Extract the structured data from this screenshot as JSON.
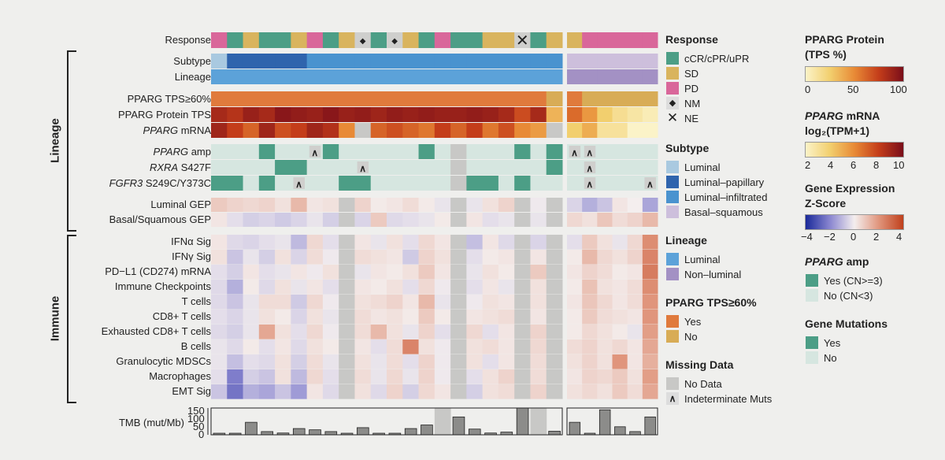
{
  "rows": [
    {
      "id": "response",
      "label": "Response",
      "italic": null
    },
    {
      "id": "subtype",
      "label": "Subtype",
      "italic": null
    },
    {
      "id": "lineage",
      "label": "Lineage",
      "italic": null
    },
    {
      "id": "tps60",
      "label": "PPARG TPS≥60%",
      "italic": null
    },
    {
      "id": "protein",
      "label": "PPARG Protein TPS",
      "italic": null
    },
    {
      "id": "mrna",
      "label": " mRNA",
      "italic": "PPARG"
    },
    {
      "id": "amp",
      "label": " amp",
      "italic": "PPARG"
    },
    {
      "id": "rxra",
      "label": " S427F",
      "italic": "RXRA"
    },
    {
      "id": "fgfr3",
      "label": " S249C/Y373C",
      "italic": "FGFR3"
    },
    {
      "id": "lumgep",
      "label": "Luminal GEP",
      "italic": null
    },
    {
      "id": "basgep",
      "label": "Basal/Squamous GEP",
      "italic": null
    },
    {
      "id": "ifna",
      "label": "IFNα Sig",
      "italic": null
    },
    {
      "id": "ifng",
      "label": "IFNγ Sig",
      "italic": null
    },
    {
      "id": "pdl1",
      "label": "PD−L1 (CD274) mRNA",
      "italic": null
    },
    {
      "id": "immcp",
      "label": "Immune Checkpoints",
      "italic": null
    },
    {
      "id": "tcells",
      "label": "T cells",
      "italic": null
    },
    {
      "id": "cd8",
      "label": "CD8+ T cells",
      "italic": null
    },
    {
      "id": "excd8",
      "label": "Exhausted CD8+ T cells",
      "italic": null
    },
    {
      "id": "bcells",
      "label": "B cells",
      "italic": null
    },
    {
      "id": "mdsc",
      "label": "Granulocytic MDSCs",
      "italic": null
    },
    {
      "id": "macro",
      "label": "Macrophages",
      "italic": null
    },
    {
      "id": "emt",
      "label": "EMT Sig",
      "italic": null
    }
  ],
  "group_labels": {
    "lineage": "Lineage",
    "immune": "Immune"
  },
  "tmb": {
    "label": "TMB (mut/Mb)",
    "ticks": [
      "150",
      "100",
      "50",
      "0"
    ]
  },
  "legends": {
    "response": {
      "title": "Response",
      "items": [
        {
          "label": "cCR/cPR/uPR",
          "color": "#4c9e86"
        },
        {
          "label": "SD",
          "color": "#d9b45e"
        },
        {
          "label": "PD",
          "color": "#d9679a"
        },
        {
          "label": "NM",
          "symbol": "◆"
        },
        {
          "label": "NE",
          "symbol": "✕"
        }
      ]
    },
    "subtype": {
      "title": "Subtype",
      "items": [
        {
          "label": "Luminal",
          "color": "#a9c9e0"
        },
        {
          "label": "Luminal–papillary",
          "color": "#2f64ad"
        },
        {
          "label": "Luminal–infiltrated",
          "color": "#4a93cf"
        },
        {
          "label": "Basal–squamous",
          "color": "#cdbfdc"
        }
      ]
    },
    "lineage": {
      "title": "Lineage",
      "items": [
        {
          "label": "Luminal",
          "color": "#5ca2d9"
        },
        {
          "label": "Non–luminal",
          "color": "#a391c4"
        }
      ]
    },
    "tps60": {
      "title": "PPARG TPS≥60%",
      "items": [
        {
          "label": "Yes",
          "color": "#e07a3c"
        },
        {
          "label": "No",
          "color": "#d8ac56"
        }
      ]
    },
    "missing": {
      "title": "Missing Data",
      "items": [
        {
          "label": "No Data",
          "color": "#c8c8c6"
        },
        {
          "label": "Indeterminate Muts",
          "symbol": "∧"
        }
      ]
    },
    "protein": {
      "title": "PPARG Protein",
      "title2": "(TPS %)",
      "ticks": [
        "0",
        "50",
        "100"
      ]
    },
    "mrna": {
      "title_italic": "PPARG",
      "title": " mRNA",
      "title2": "log₂(TPM+1)",
      "ticks": [
        "2",
        "4",
        "6",
        "8",
        "10"
      ]
    },
    "gexp": {
      "title": "Gene Expression",
      "title2": "Z-Score",
      "ticks": [
        "−4",
        "−2",
        "0",
        "2",
        "4"
      ]
    },
    "amp": {
      "title_italic": "PPARG",
      "title": " amp",
      "items": [
        {
          "label": "Yes (CN>=3)",
          "color": "#4c9e86"
        },
        {
          "label": "No (CN<3)",
          "color": "#d6e6e0"
        }
      ]
    },
    "mut": {
      "title": "Gene Mutations",
      "items": [
        {
          "label": "Yes",
          "color": "#4c9e86"
        },
        {
          "label": "No",
          "color": "#d6e6e0"
        }
      ]
    }
  },
  "colors": {
    "cool": "#3a3aa8",
    "warm": "#c0401c",
    "neutral": "#f4eeee",
    "nodata": "#c8c8c6",
    "amp_no": "#d6e6e0",
    "amp_yes": "#4c9e86"
  },
  "chart_data": {
    "type": "heatmap",
    "groups": [
      {
        "name": "Luminal",
        "n": 22
      },
      {
        "name": "Non-luminal",
        "n": 6
      }
    ],
    "response": [
      "PD",
      "cCR",
      "SD",
      "cCR",
      "cCR",
      "SD",
      "PD",
      "cCR",
      "SD",
      "NM",
      "cCR",
      "NM",
      "SD",
      "cCR",
      "PD",
      "cCR",
      "cCR",
      "SD",
      "SD",
      "NE",
      "cCR",
      "SD",
      "SD",
      "PD",
      "PD",
      "PD",
      "PD",
      "PD"
    ],
    "subtype": [
      "Luminal",
      "Luminal–papillary",
      "Luminal–papillary",
      "Luminal–papillary",
      "Luminal–papillary",
      "Luminal–papillary",
      "Luminal–infiltrated",
      "Luminal–infiltrated",
      "Luminal–infiltrated",
      "Luminal–infiltrated",
      "Luminal–infiltrated",
      "Luminal–infiltrated",
      "Luminal–infiltrated",
      "Luminal–infiltrated",
      "Luminal–infiltrated",
      "Luminal–infiltrated",
      "Luminal–infiltrated",
      "Luminal–infiltrated",
      "Luminal–infiltrated",
      "Luminal–infiltrated",
      "Luminal–infiltrated",
      "Luminal–infiltrated",
      "Basal–squamous",
      "Basal–squamous",
      "Basal–squamous",
      "Basal–squamous",
      "Basal–squamous",
      "Basal–squamous"
    ],
    "tps60": [
      "Yes",
      "Yes",
      "Yes",
      "Yes",
      "Yes",
      "Yes",
      "Yes",
      "Yes",
      "Yes",
      "Yes",
      "Yes",
      "Yes",
      "Yes",
      "Yes",
      "Yes",
      "Yes",
      "Yes",
      "Yes",
      "Yes",
      "Yes",
      "Yes",
      "No",
      "Yes",
      "No",
      "No",
      "No",
      "No",
      "No"
    ],
    "protein_tps": [
      85,
      80,
      90,
      85,
      95,
      92,
      90,
      95,
      90,
      92,
      88,
      92,
      90,
      92,
      90,
      90,
      92,
      90,
      85,
      70,
      85,
      35,
      60,
      45,
      25,
      15,
      10,
      5
    ],
    "mrna": [
      9,
      8,
      7,
      9,
      7.5,
      8,
      9,
      8.5,
      6,
      null,
      7,
      7.5,
      7,
      6.5,
      8,
      7,
      8,
      6.5,
      7.5,
      6,
      5.5,
      null,
      4,
      5,
      3,
      3,
      2,
      2
    ],
    "amp": [
      0,
      0,
      0,
      1,
      0,
      0,
      2,
      1,
      0,
      0,
      0,
      0,
      0,
      1,
      0,
      null,
      0,
      0,
      0,
      1,
      0,
      1,
      2,
      2,
      0,
      0,
      0,
      0
    ],
    "rxra": [
      0,
      0,
      0,
      0,
      1,
      1,
      0,
      0,
      0,
      2,
      0,
      0,
      0,
      0,
      0,
      null,
      0,
      0,
      0,
      0,
      0,
      1,
      0,
      2,
      0,
      0,
      0,
      0
    ],
    "fgfr3": [
      1,
      1,
      0,
      1,
      0,
      2,
      0,
      0,
      1,
      1,
      0,
      0,
      0,
      0,
      0,
      null,
      1,
      1,
      0,
      1,
      0,
      0,
      0,
      2,
      0,
      0,
      0,
      2
    ],
    "lumgep": [
      0.8,
      0.6,
      0.5,
      0.6,
      0.3,
      1.2,
      0.2,
      0.3,
      null,
      0.6,
      0.1,
      0.2,
      0.4,
      0.1,
      -0.2,
      null,
      -0.2,
      0.3,
      0.6,
      null,
      -0.1,
      null,
      -0.5,
      -1.2,
      -0.8,
      0.2,
      0.0,
      -1.4
    ],
    "basgep": [
      0.2,
      -0.3,
      -0.6,
      -0.5,
      -0.7,
      -0.5,
      -0.2,
      -0.6,
      null,
      -0.5,
      0.8,
      -0.4,
      -0.3,
      -0.2,
      0.1,
      null,
      0.2,
      -0.3,
      -0.2,
      null,
      -0.2,
      null,
      0.5,
      0.3,
      0.9,
      0.4,
      0.6,
      1.2
    ],
    "ifna": [
      0.2,
      -0.4,
      -0.5,
      -0.3,
      -0.2,
      -1.0,
      0.5,
      -0.3,
      null,
      0.2,
      -0.2,
      0.3,
      -0.3,
      0.5,
      0.2,
      null,
      -0.9,
      0.2,
      -0.4,
      null,
      -0.5,
      null,
      -0.3,
      0.8,
      0.3,
      -0.2,
      0.5,
      2.2
    ],
    "ifng": [
      0.3,
      -0.8,
      -0.2,
      -0.6,
      0.3,
      -0.5,
      0.4,
      -0.1,
      null,
      0.4,
      0.3,
      0.2,
      -0.7,
      0.6,
      0.3,
      null,
      -0.3,
      0.1,
      0.2,
      null,
      0.2,
      null,
      0.1,
      1.2,
      0.5,
      0.3,
      0.6,
      2.4
    ],
    "pdl1": [
      -0.3,
      -0.6,
      0.2,
      -0.3,
      -0.2,
      0.2,
      -0.1,
      0.3,
      null,
      -0.2,
      0.2,
      0.1,
      0.3,
      0.8,
      0.2,
      null,
      -0.2,
      0.3,
      0.1,
      null,
      0.8,
      null,
      0.2,
      0.6,
      0.4,
      0.1,
      0.2,
      2.6
    ],
    "immcp": [
      -0.4,
      -1.2,
      0.1,
      -0.4,
      0.3,
      -0.2,
      0.2,
      -0.3,
      null,
      0.2,
      0.1,
      0.3,
      -0.3,
      0.5,
      -0.1,
      null,
      -0.3,
      0.2,
      -0.2,
      null,
      0.3,
      null,
      0.1,
      1.0,
      0.3,
      0.2,
      0.4,
      2.2
    ],
    "tcells": [
      -0.4,
      -0.8,
      -0.2,
      0.4,
      0.4,
      -0.7,
      0.5,
      -0.1,
      null,
      0.3,
      0.4,
      0.6,
      0.2,
      1.2,
      -0.2,
      null,
      -0.1,
      0.3,
      0.2,
      null,
      0.3,
      null,
      0.2,
      0.9,
      0.5,
      0.2,
      0.4,
      2.0
    ],
    "cd8": [
      -0.3,
      -0.5,
      -0.2,
      0.3,
      0.1,
      -0.5,
      0.3,
      -0.2,
      null,
      0.4,
      0.2,
      0.3,
      0.1,
      0.8,
      0.1,
      null,
      0.2,
      0.3,
      0.4,
      null,
      0.2,
      null,
      0.1,
      0.8,
      0.4,
      0.3,
      0.2,
      2.0
    ],
    "excd8": [
      -0.4,
      -0.6,
      -0.2,
      1.6,
      0.3,
      -0.3,
      0.5,
      -0.1,
      null,
      0.4,
      1.2,
      0.3,
      -0.2,
      0.6,
      -0.3,
      null,
      0.5,
      -0.3,
      0.2,
      null,
      0.6,
      null,
      0.1,
      0.5,
      0.3,
      0.1,
      -0.2,
      1.8
    ],
    "bcells": [
      -0.2,
      -0.4,
      0.1,
      -0.3,
      0.2,
      -0.4,
      0.3,
      0.1,
      null,
      0.2,
      -0.3,
      0.4,
      2.4,
      0.3,
      -0.1,
      null,
      0.3,
      0.4,
      0.2,
      null,
      0.5,
      null,
      0.4,
      0.6,
      0.3,
      0.5,
      0.2,
      1.6
    ],
    "mdsc": [
      -0.2,
      -0.9,
      -0.3,
      -0.4,
      0.3,
      -0.6,
      0.4,
      -0.2,
      null,
      0.3,
      -0.2,
      0.4,
      -0.3,
      0.6,
      -0.1,
      null,
      0.3,
      -0.3,
      0.2,
      null,
      0.4,
      null,
      0.3,
      0.6,
      0.3,
      2.0,
      0.2,
      1.4
    ],
    "macro": [
      -0.3,
      -2.2,
      -0.6,
      -0.8,
      0.3,
      -1.0,
      0.5,
      -0.3,
      null,
      0.4,
      -0.2,
      0.5,
      -0.2,
      0.6,
      -0.1,
      null,
      -0.3,
      0.3,
      0.6,
      null,
      0.4,
      null,
      0.2,
      0.6,
      0.5,
      0.8,
      0.3,
      1.8
    ],
    "emt": [
      -0.8,
      -2.4,
      -1.2,
      -1.4,
      -0.8,
      -1.6,
      0.2,
      -0.4,
      null,
      0.3,
      -0.4,
      0.6,
      -0.6,
      0.5,
      0.2,
      null,
      -0.6,
      0.3,
      0.4,
      null,
      0.6,
      null,
      0.3,
      0.5,
      0.3,
      0.8,
      0.4,
      1.6
    ],
    "tmb": [
      4,
      3,
      70,
      18,
      10,
      35,
      28,
      18,
      5,
      40,
      8,
      8,
      35,
      55,
      null,
      100,
      32,
      10,
      15,
      150,
      null,
      20,
      70,
      8,
      140,
      45,
      18,
      100
    ],
    "tmb_ylim": [
      0,
      150
    ]
  }
}
